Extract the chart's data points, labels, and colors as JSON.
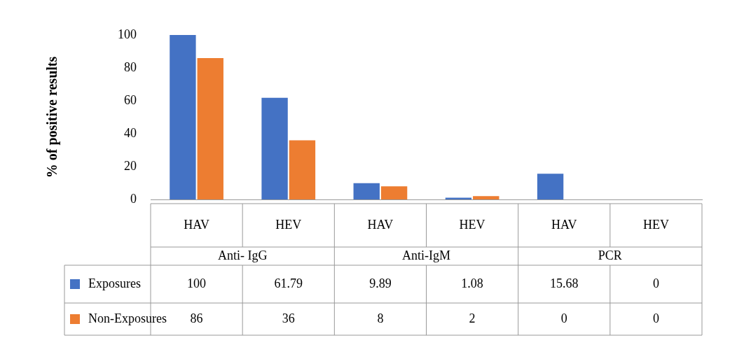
{
  "chart_data": {
    "type": "bar",
    "ylabel": "% of positive results",
    "categories": [
      "HAV",
      "HEV",
      "HAV",
      "HEV",
      "HAV",
      "HEV"
    ],
    "annotations": [
      "Anti- IgG",
      "Anti-IgM",
      "PCR"
    ],
    "series": [
      {
        "name": "Exposures",
        "color": "#4472c4",
        "values": [
          100,
          61.79,
          9.89,
          1.08,
          15.68,
          0
        ]
      },
      {
        "name": "Non-Exposures",
        "color": "#ed7d31",
        "values": [
          86,
          36,
          8,
          2,
          0,
          0
        ]
      }
    ],
    "ylim": [
      0,
      100
    ],
    "yticks": [
      0,
      20,
      40,
      60,
      80,
      100
    ],
    "grid": false,
    "legend": "bottom left",
    "data_labels": true
  }
}
